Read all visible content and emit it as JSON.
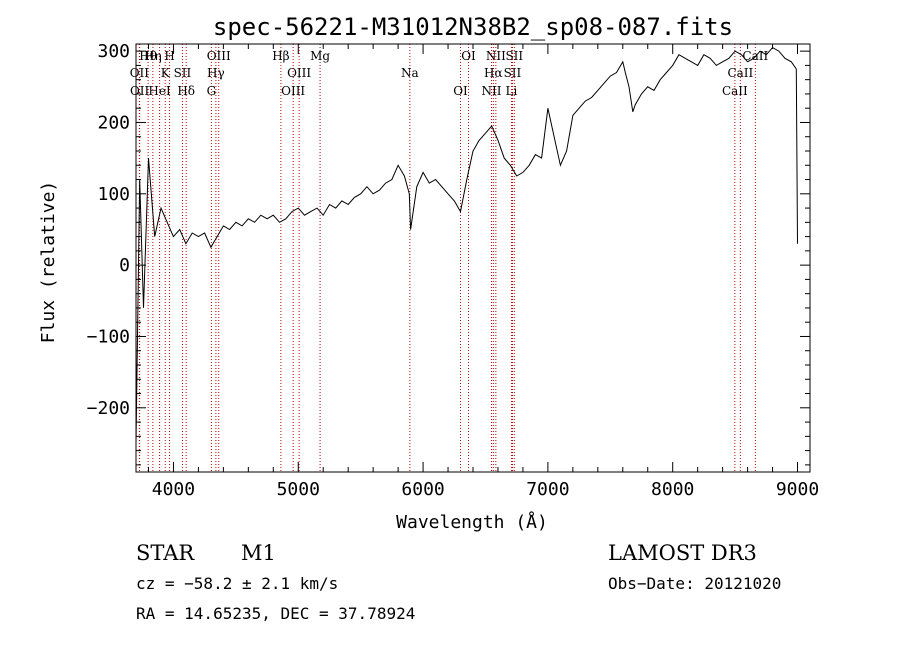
{
  "chart_data": {
    "type": "line",
    "title": "spec-56221-M31012N38B2_sp08-087.fits",
    "xlabel": "Wavelength (Å)",
    "ylabel": "Flux (relative)",
    "xlim": [
      3700,
      9100
    ],
    "ylim": [
      -290,
      310
    ],
    "xticks": [
      4000,
      5000,
      6000,
      7000,
      8000,
      9000
    ],
    "yticks": [
      -200,
      -100,
      0,
      100,
      200,
      300
    ],
    "series": [
      {
        "name": "spectrum",
        "x": [
          3700,
          3730,
          3760,
          3800,
          3850,
          3900,
          3950,
          4000,
          4050,
          4100,
          4150,
          4200,
          4250,
          4300,
          4350,
          4400,
          4450,
          4500,
          4550,
          4600,
          4650,
          4700,
          4750,
          4800,
          4850,
          4900,
          4950,
          5000,
          5050,
          5100,
          5150,
          5200,
          5250,
          5300,
          5350,
          5400,
          5450,
          5500,
          5550,
          5600,
          5650,
          5700,
          5750,
          5800,
          5850,
          5890,
          5900,
          5950,
          6000,
          6050,
          6100,
          6150,
          6200,
          6250,
          6300,
          6350,
          6400,
          6450,
          6500,
          6550,
          6600,
          6650,
          6700,
          6750,
          6800,
          6850,
          6900,
          6950,
          7000,
          7050,
          7100,
          7150,
          7200,
          7250,
          7300,
          7350,
          7400,
          7450,
          7500,
          7550,
          7600,
          7620,
          7650,
          7680,
          7700,
          7750,
          7800,
          7850,
          7900,
          7950,
          8000,
          8050,
          8100,
          8150,
          8200,
          8250,
          8300,
          8350,
          8400,
          8450,
          8500,
          8550,
          8600,
          8650,
          8700,
          8750,
          8800,
          8850,
          8900,
          8950,
          8990,
          9000
        ],
        "y": [
          -250,
          120,
          -60,
          150,
          40,
          80,
          60,
          40,
          50,
          30,
          45,
          40,
          45,
          25,
          40,
          55,
          50,
          60,
          55,
          65,
          60,
          70,
          65,
          70,
          60,
          65,
          75,
          80,
          70,
          75,
          80,
          70,
          85,
          80,
          90,
          85,
          95,
          100,
          110,
          100,
          105,
          115,
          120,
          140,
          125,
          100,
          50,
          110,
          130,
          115,
          120,
          110,
          100,
          90,
          75,
          120,
          160,
          175,
          185,
          195,
          175,
          150,
          140,
          125,
          130,
          140,
          155,
          150,
          220,
          180,
          140,
          160,
          210,
          220,
          230,
          235,
          245,
          255,
          265,
          270,
          285,
          270,
          250,
          215,
          225,
          240,
          250,
          245,
          260,
          270,
          280,
          295,
          290,
          285,
          280,
          295,
          290,
          280,
          285,
          290,
          300,
          295,
          285,
          290,
          300,
          295,
          305,
          300,
          290,
          285,
          275,
          30
        ]
      }
    ],
    "spectral_lines": [
      {
        "label": "Hθ",
        "wavelength": 3797
      },
      {
        "label": "OII",
        "wavelength": 3727
      },
      {
        "label": "OII",
        "wavelength": 3729
      },
      {
        "label": "Hη",
        "wavelength": 3835
      },
      {
        "label": "K",
        "wavelength": 3934
      },
      {
        "label": "HeI",
        "wavelength": 3889
      },
      {
        "label": "H",
        "wavelength": 3969
      },
      {
        "label": "SII",
        "wavelength": 4072
      },
      {
        "label": "Hδ",
        "wavelength": 4102
      },
      {
        "label": "OIII",
        "wavelength": 4363
      },
      {
        "label": "Hγ",
        "wavelength": 4340
      },
      {
        "label": "G",
        "wavelength": 4304
      },
      {
        "label": "Hβ",
        "wavelength": 4861
      },
      {
        "label": "OIII",
        "wavelength": 5007
      },
      {
        "label": "OIII",
        "wavelength": 4959
      },
      {
        "label": "Mg",
        "wavelength": 5175
      },
      {
        "label": "Na",
        "wavelength": 5894
      },
      {
        "label": "OI",
        "wavelength": 6300
      },
      {
        "label": "OI",
        "wavelength": 6364
      },
      {
        "label": "Hα",
        "wavelength": 6563
      },
      {
        "label": "NII",
        "wavelength": 6548
      },
      {
        "label": "NII",
        "wavelength": 6583
      },
      {
        "label": "SII",
        "wavelength": 6716
      },
      {
        "label": "Li",
        "wavelength": 6708
      },
      {
        "label": "SII",
        "wavelength": 6731
      },
      {
        "label": "CaII",
        "wavelength": 8542
      },
      {
        "label": "CaII",
        "wavelength": 8498
      },
      {
        "label": "CaII",
        "wavelength": 8662
      }
    ],
    "colors": {
      "line": "#000000",
      "marker": "#c00000"
    }
  },
  "info": {
    "object_type": "STAR",
    "subclass": "M1",
    "survey": "LAMOST DR3",
    "redshift": "cz = −58.2 ± 2.1 km/s",
    "obs_date": "Obs−Date: 20121020",
    "coords": "RA =  14.65235, DEC =  37.78924"
  }
}
